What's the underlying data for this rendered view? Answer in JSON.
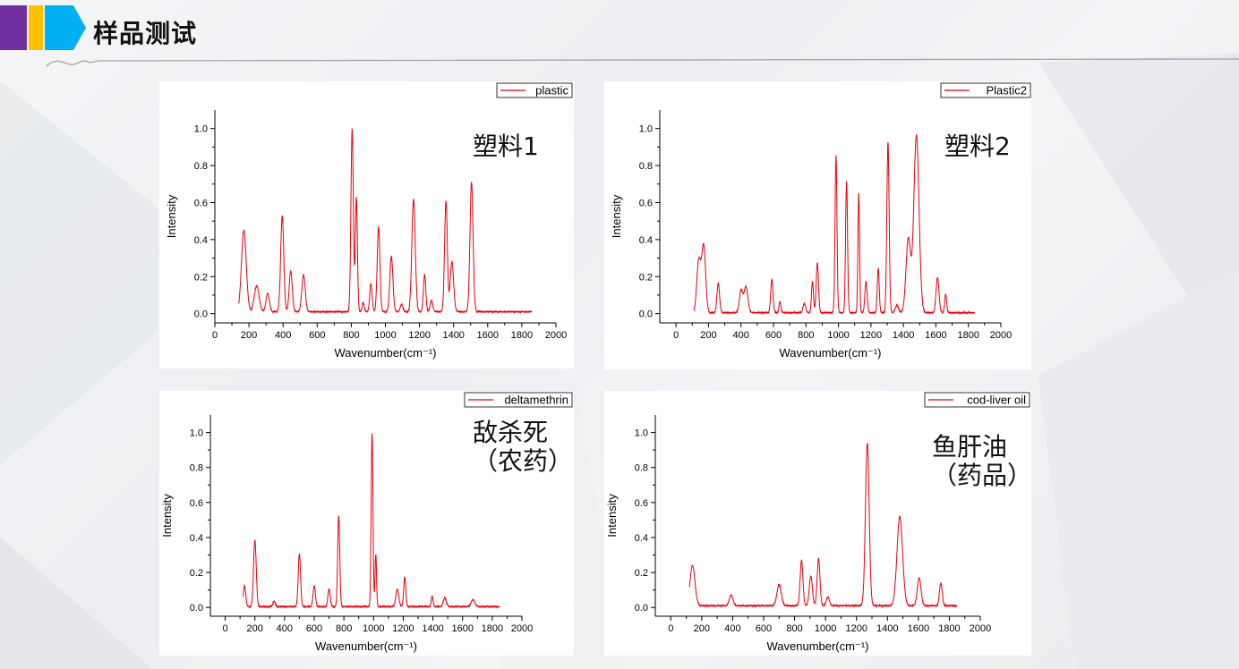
{
  "header": {
    "title": "样品测试"
  },
  "colors": {
    "accent_purple": "#7030a0",
    "accent_yellow": "#ffc000",
    "accent_blue": "#00b0f0",
    "line": "#e8000b"
  },
  "chart_data": [
    {
      "type": "line",
      "legend": "plastic",
      "annotation": [
        "塑料1"
      ],
      "xlabel": "Wavenumber(cm⁻¹)",
      "ylabel": "Intensity",
      "xlim": [
        0,
        2000
      ],
      "ylim": [
        -0.05,
        1.1
      ],
      "xticks": [
        0,
        200,
        400,
        600,
        800,
        1000,
        1200,
        1400,
        1600,
        1800,
        2000
      ],
      "yticks": [
        0.0,
        0.2,
        0.4,
        0.6,
        0.8,
        1.0
      ],
      "x_range": [
        140,
        1860
      ],
      "baseline": 0.01,
      "peaks": [
        [
          170,
          0.44,
          14
        ],
        [
          245,
          0.14,
          14
        ],
        [
          310,
          0.1,
          10
        ],
        [
          395,
          0.52,
          9
        ],
        [
          445,
          0.22,
          9
        ],
        [
          520,
          0.2,
          10
        ],
        [
          805,
          0.99,
          7
        ],
        [
          830,
          0.62,
          6
        ],
        [
          870,
          0.05,
          6
        ],
        [
          915,
          0.15,
          7
        ],
        [
          960,
          0.46,
          8
        ],
        [
          1035,
          0.3,
          9
        ],
        [
          1095,
          0.04,
          8
        ],
        [
          1165,
          0.61,
          10
        ],
        [
          1230,
          0.2,
          7
        ],
        [
          1270,
          0.06,
          8
        ],
        [
          1355,
          0.6,
          8
        ],
        [
          1390,
          0.27,
          10
        ],
        [
          1505,
          0.7,
          9
        ]
      ],
      "series": [
        {
          "name": "plastic"
        }
      ]
    },
    {
      "type": "line",
      "legend": "Plastic2",
      "annotation": [
        "塑料2"
      ],
      "xlabel": "Wavenumber(cm⁻¹)",
      "ylabel": "Intensity",
      "xlim": [
        -100,
        2000
      ],
      "ylim": [
        -0.05,
        1.1
      ],
      "xticks": [
        0,
        200,
        400,
        600,
        800,
        1000,
        1200,
        1400,
        1600,
        1800,
        2000
      ],
      "yticks": [
        0.0,
        0.2,
        0.4,
        0.6,
        0.8,
        1.0
      ],
      "x_range": [
        110,
        1840
      ],
      "baseline": 0.005,
      "peaks": [
        [
          140,
          0.28,
          12
        ],
        [
          170,
          0.36,
          12
        ],
        [
          260,
          0.16,
          8
        ],
        [
          400,
          0.12,
          10
        ],
        [
          430,
          0.14,
          12
        ],
        [
          590,
          0.18,
          7
        ],
        [
          640,
          0.06,
          6
        ],
        [
          790,
          0.05,
          8
        ],
        [
          840,
          0.17,
          6
        ],
        [
          870,
          0.27,
          7
        ],
        [
          985,
          0.85,
          6
        ],
        [
          1050,
          0.71,
          6
        ],
        [
          1125,
          0.65,
          5
        ],
        [
          1170,
          0.17,
          7
        ],
        [
          1245,
          0.24,
          6
        ],
        [
          1305,
          0.92,
          7
        ],
        [
          1360,
          0.04,
          10
        ],
        [
          1430,
          0.4,
          14
        ],
        [
          1480,
          0.96,
          16
        ],
        [
          1610,
          0.19,
          9
        ],
        [
          1660,
          0.1,
          6
        ]
      ],
      "series": [
        {
          "name": "Plastic2"
        }
      ]
    },
    {
      "type": "line",
      "legend": "deltamethrin",
      "annotation": [
        "敌杀死",
        "（农药）"
      ],
      "xlabel": "Wavenumber(cm⁻¹)",
      "ylabel": "Intensity",
      "xlim": [
        -100,
        2000
      ],
      "ylim": [
        -0.05,
        1.1
      ],
      "xticks": [
        0,
        200,
        400,
        600,
        800,
        1000,
        1200,
        1400,
        1600,
        1800,
        2000
      ],
      "yticks": [
        0.0,
        0.2,
        0.4,
        0.6,
        0.8,
        1.0
      ],
      "x_range": [
        120,
        1850
      ],
      "baseline": 0.005,
      "peaks": [
        [
          130,
          0.12,
          8
        ],
        [
          200,
          0.38,
          9
        ],
        [
          330,
          0.03,
          8
        ],
        [
          500,
          0.3,
          8
        ],
        [
          600,
          0.12,
          8
        ],
        [
          700,
          0.1,
          8
        ],
        [
          765,
          0.52,
          7
        ],
        [
          990,
          0.99,
          6
        ],
        [
          1015,
          0.3,
          5
        ],
        [
          1160,
          0.1,
          10
        ],
        [
          1210,
          0.17,
          7
        ],
        [
          1395,
          0.06,
          6
        ],
        [
          1480,
          0.05,
          10
        ],
        [
          1670,
          0.04,
          12
        ]
      ],
      "series": [
        {
          "name": "deltamethrin"
        }
      ]
    },
    {
      "type": "line",
      "legend": "cod-liver oil",
      "annotation": [
        "鱼肝油",
        "（药品）"
      ],
      "xlabel": "Wavenumber(cm⁻¹)",
      "ylabel": "Intensity",
      "xlim": [
        -100,
        2000
      ],
      "ylim": [
        -0.05,
        1.1
      ],
      "xticks": [
        0,
        200,
        400,
        600,
        800,
        1000,
        1200,
        1400,
        1600,
        1800,
        2000
      ],
      "yticks": [
        0.0,
        0.2,
        0.4,
        0.6,
        0.8,
        1.0
      ],
      "x_range": [
        120,
        1850
      ],
      "baseline": 0.01,
      "peaks": [
        [
          140,
          0.23,
          16
        ],
        [
          390,
          0.06,
          12
        ],
        [
          700,
          0.12,
          14
        ],
        [
          845,
          0.26,
          9
        ],
        [
          905,
          0.17,
          10
        ],
        [
          955,
          0.27,
          9
        ],
        [
          1015,
          0.05,
          10
        ],
        [
          1270,
          0.93,
          12
        ],
        [
          1480,
          0.51,
          18
        ],
        [
          1605,
          0.16,
          12
        ],
        [
          1745,
          0.13,
          9
        ]
      ],
      "series": [
        {
          "name": "cod-liver oil"
        }
      ]
    }
  ]
}
